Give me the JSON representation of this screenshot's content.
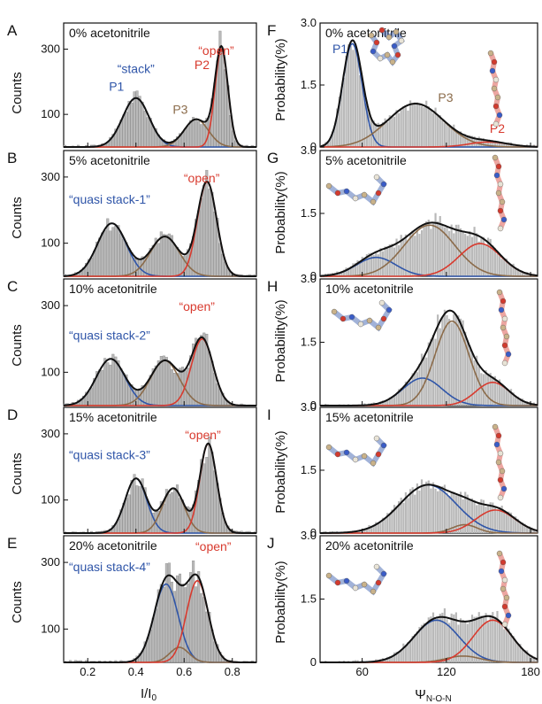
{
  "colors": {
    "bar_fill": "#b9b9b9",
    "bar_stroke": "#8a8a8a",
    "total_fit": "#111111",
    "stack_component": "#2f55a8",
    "open_component": "#d83a2e",
    "p3_component": "#8b6b4a"
  },
  "left_axis": {
    "ylabel": "Counts",
    "xlabel_main": "I/I",
    "xlabel_sub": "0",
    "xticks": [
      "0.2",
      "0.4",
      "0.6",
      "0.8"
    ]
  },
  "right_axis": {
    "ylabel": "Probability(%)",
    "xlabel_main": "Ψ",
    "xlabel_sub": "N-O-N",
    "xticks": [
      "60",
      "120",
      "180"
    ]
  },
  "chart_data": [
    {
      "panel": "A",
      "type": "bar",
      "condition": "0%  acetonitrile",
      "xlim": [
        0.1,
        0.9
      ],
      "ylim": [
        0,
        380
      ],
      "yticks": [
        "100",
        "300"
      ],
      "components": [
        {
          "label": "P1",
          "annotation": "“stack”",
          "color": "stack",
          "mean": 0.4,
          "sd": 0.055,
          "amp": 150
        },
        {
          "label": "P3",
          "annotation": "",
          "color": "p3",
          "mean": 0.65,
          "sd": 0.05,
          "amp": 85
        },
        {
          "label": "P2",
          "annotation": "“open”",
          "color": "open",
          "mean": 0.755,
          "sd": 0.027,
          "amp": 300
        }
      ]
    },
    {
      "panel": "B",
      "type": "bar",
      "condition": "5%  acetonitrile",
      "xlim": [
        0.1,
        0.9
      ],
      "ylim": [
        0,
        380
      ],
      "yticks": [
        "100",
        "300"
      ],
      "components": [
        {
          "label": "",
          "annotation": "“quasi stack-1”",
          "color": "stack",
          "mean": 0.3,
          "sd": 0.06,
          "amp": 160
        },
        {
          "label": "",
          "annotation": "",
          "color": "p3",
          "mean": 0.52,
          "sd": 0.06,
          "amp": 120
        },
        {
          "label": "",
          "annotation": "“open”",
          "color": "open",
          "mean": 0.695,
          "sd": 0.04,
          "amp": 285
        }
      ]
    },
    {
      "panel": "C",
      "type": "bar",
      "condition": "10%  acetonitrile",
      "xlim": [
        0.1,
        0.9
      ],
      "ylim": [
        0,
        380
      ],
      "yticks": [
        "100",
        "300"
      ],
      "components": [
        {
          "label": "",
          "annotation": "“quasi stack-2”",
          "color": "stack",
          "mean": 0.295,
          "sd": 0.06,
          "amp": 140
        },
        {
          "label": "",
          "annotation": "",
          "color": "p3",
          "mean": 0.52,
          "sd": 0.06,
          "amp": 135
        },
        {
          "label": "",
          "annotation": "“open”",
          "color": "open",
          "mean": 0.675,
          "sd": 0.045,
          "amp": 200
        }
      ]
    },
    {
      "panel": "D",
      "type": "bar",
      "condition": "15%  acetonitrile",
      "xlim": [
        0.1,
        0.9
      ],
      "ylim": [
        0,
        380
      ],
      "yticks": [
        "100",
        "300"
      ],
      "components": [
        {
          "label": "",
          "annotation": "“quasi stack-3”",
          "color": "stack",
          "mean": 0.4,
          "sd": 0.045,
          "amp": 165
        },
        {
          "label": "",
          "annotation": "",
          "color": "p3",
          "mean": 0.555,
          "sd": 0.045,
          "amp": 135
        },
        {
          "label": "",
          "annotation": "“open”",
          "color": "open",
          "mean": 0.7,
          "sd": 0.035,
          "amp": 270
        }
      ]
    },
    {
      "panel": "E",
      "type": "bar",
      "condition": "20%  acetonitrile",
      "xlim": [
        0.1,
        0.9
      ],
      "ylim": [
        0,
        380
      ],
      "yticks": [
        "100",
        "300"
      ],
      "components": [
        {
          "label": "",
          "annotation": "“quasi stack-4”",
          "color": "stack",
          "mean": 0.525,
          "sd": 0.05,
          "amp": 235
        },
        {
          "label": "",
          "annotation": "",
          "color": "p3",
          "mean": 0.58,
          "sd": 0.04,
          "amp": 45
        },
        {
          "label": "",
          "annotation": "“open”",
          "color": "open",
          "mean": 0.655,
          "sd": 0.045,
          "amp": 245
        }
      ]
    },
    {
      "panel": "F",
      "type": "bar",
      "condition": "0%  acetonitrile",
      "xlim": [
        30,
        185
      ],
      "ylim": [
        0,
        3.0
      ],
      "yticks": [
        "0",
        "1.5",
        "3.0"
      ],
      "components": [
        {
          "label": "P1",
          "annotation": "",
          "color": "stack",
          "mean": 53,
          "sd": 7,
          "amp": 2.5
        },
        {
          "label": "P3",
          "annotation": "",
          "color": "p3",
          "mean": 98,
          "sd": 20,
          "amp": 1.05
        },
        {
          "label": "P2",
          "annotation": "",
          "color": "open",
          "mean": 150,
          "sd": 14,
          "amp": 0.12
        }
      ]
    },
    {
      "panel": "G",
      "type": "bar",
      "condition": "5%  acetonitrile",
      "xlim": [
        30,
        185
      ],
      "ylim": [
        0,
        3.0
      ],
      "yticks": [
        "0",
        "1.5",
        "3.0"
      ],
      "components": [
        {
          "label": "",
          "annotation": "",
          "color": "stack",
          "mean": 70,
          "sd": 14,
          "amp": 0.45
        },
        {
          "label": "",
          "annotation": "",
          "color": "p3",
          "mean": 108,
          "sd": 18,
          "amp": 1.22
        },
        {
          "label": "",
          "annotation": "",
          "color": "open",
          "mean": 144,
          "sd": 15,
          "amp": 0.78
        }
      ]
    },
    {
      "panel": "H",
      "type": "bar",
      "condition": "10%  acetonitrile",
      "xlim": [
        30,
        185
      ],
      "ylim": [
        0,
        3.0
      ],
      "yticks": [
        "0",
        "1.5",
        "3.0"
      ],
      "components": [
        {
          "label": "",
          "annotation": "",
          "color": "stack",
          "mean": 103,
          "sd": 14,
          "amp": 0.65
        },
        {
          "label": "",
          "annotation": "",
          "color": "p3",
          "mean": 124,
          "sd": 12,
          "amp": 2.0
        },
        {
          "label": "",
          "annotation": "",
          "color": "open",
          "mean": 153,
          "sd": 12,
          "amp": 0.55
        }
      ]
    },
    {
      "panel": "I",
      "type": "bar",
      "condition": "15%  acetonitrile",
      "xlim": [
        30,
        185
      ],
      "ylim": [
        0,
        3.0
      ],
      "yticks": [
        "0",
        "1.5",
        "3.0"
      ],
      "components": [
        {
          "label": "",
          "annotation": "",
          "color": "stack",
          "mean": 107,
          "sd": 20,
          "amp": 1.15
        },
        {
          "label": "",
          "annotation": "",
          "color": "p3",
          "mean": 133,
          "sd": 9,
          "amp": 0.2
        },
        {
          "label": "",
          "annotation": "",
          "color": "open",
          "mean": 155,
          "sd": 14,
          "amp": 0.55
        }
      ]
    },
    {
      "panel": "J",
      "type": "bar",
      "condition": "20%  acetonitrile",
      "xlim": [
        30,
        185
      ],
      "ylim": [
        0,
        3.0
      ],
      "yticks": [
        "0",
        "1.5",
        "3.0"
      ],
      "components": [
        {
          "label": "",
          "annotation": "",
          "color": "stack",
          "mean": 113,
          "sd": 16,
          "amp": 1.0
        },
        {
          "label": "",
          "annotation": "",
          "color": "p3",
          "mean": 132,
          "sd": 12,
          "amp": 0.15
        },
        {
          "label": "",
          "annotation": "",
          "color": "open",
          "mean": 153,
          "sd": 14,
          "amp": 1.0
        }
      ]
    }
  ]
}
